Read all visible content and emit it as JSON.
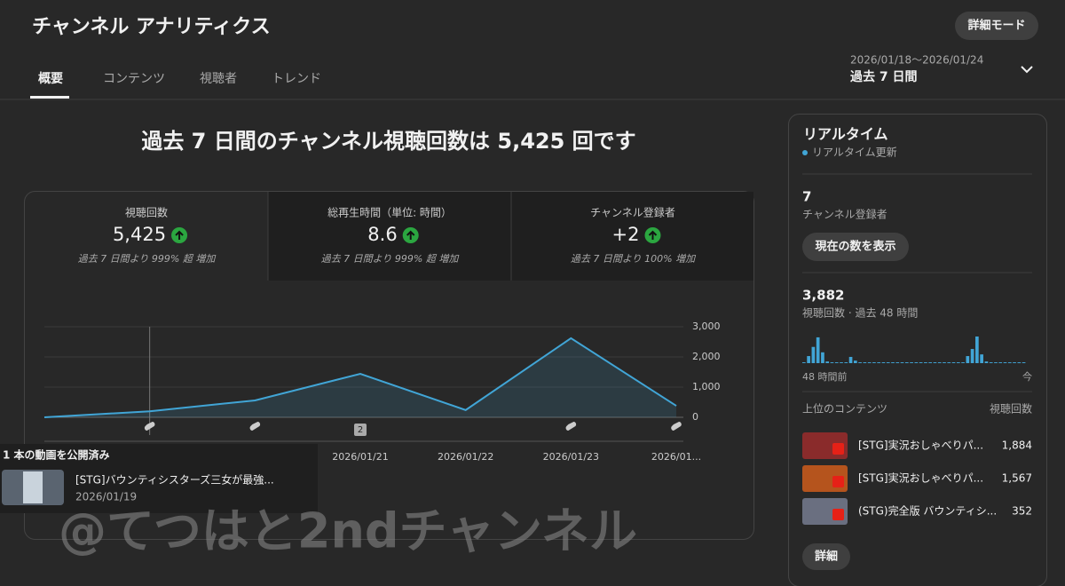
{
  "header": {
    "title": "チャンネル アナリティクス",
    "advanced_button": "詳細モード"
  },
  "tabs": [
    "概要",
    "コンテンツ",
    "視聴者",
    "トレンド"
  ],
  "date_range": {
    "dates": "2026/01/18〜2026/01/24",
    "label": "過去 7 日間"
  },
  "headline": "過去 7 日間のチャンネル視聴回数は 5,425 回です",
  "metrics": [
    {
      "label": "視聴回数",
      "value": "5,425",
      "change": "過去 7 日間より 999% 超 増加"
    },
    {
      "label": "総再生時間（単位: 時間）",
      "value": "8.6",
      "change": "過去 7 日間より 999% 超 増加"
    },
    {
      "label": "チャンネル登録者",
      "value": "+2",
      "change": "過去 7 日間より 100% 増加"
    }
  ],
  "chart_data": {
    "type": "line",
    "categories": [
      null,
      null,
      null,
      "2026/01/21",
      "2026/01/22",
      "2026/01/23",
      "2026/01..."
    ],
    "series": [
      {
        "name": "視聴回数",
        "color": "#41a5d6",
        "values": [
          0,
          200,
          560,
          1440,
          240,
          2620,
          380
        ]
      }
    ],
    "ylim": [
      0,
      3000
    ],
    "yticks": [
      0,
      {
        "value": 1000,
        "label": "1,000"
      },
      {
        "value": 2000,
        "label": "2,000"
      },
      {
        "value": 3000,
        "label": "3,000"
      }
    ],
    "grid": true,
    "badge": "2"
  },
  "popup": {
    "heading": "1 本の動画を公開済み",
    "title": "[STG]バウンティシスターズ三女が最強...",
    "date": "2026/01/19"
  },
  "watermark": "@てつはと2ndチャンネル",
  "realtime": {
    "title": "リアルタイム",
    "status": "リアルタイム更新",
    "subscribers": "7",
    "subscribers_label": "チャンネル登録者",
    "show_button": "現在の数を表示",
    "views": "3,882",
    "views_label": "視聴回数 · 過去 48 時間",
    "chart_data": {
      "type": "bar",
      "color": "#41a5d6",
      "values": [
        20,
        170,
        390,
        620,
        260,
        40,
        20,
        20,
        20,
        20,
        150,
        60,
        20,
        20,
        20,
        20,
        20,
        20,
        20,
        20,
        20,
        20,
        20,
        20,
        20,
        20,
        20,
        20,
        20,
        20,
        20,
        20,
        20,
        20,
        20,
        170,
        340,
        640,
        210,
        40,
        20,
        20,
        20,
        20,
        20,
        20,
        20,
        20
      ],
      "start_label": "48 時間前",
      "end_label": "今"
    },
    "top_content_label": "上位のコンテンツ",
    "views_column": "視聴回数",
    "top_content": [
      {
        "title": "[STG]実況おしゃべりパ...",
        "views": "1,884"
      },
      {
        "title": "[STG]実況おしゃべりパ...",
        "views": "1,567"
      },
      {
        "title": "(STG)完全版 バウンティシ...",
        "views": "352"
      }
    ],
    "details_button": "詳細"
  }
}
